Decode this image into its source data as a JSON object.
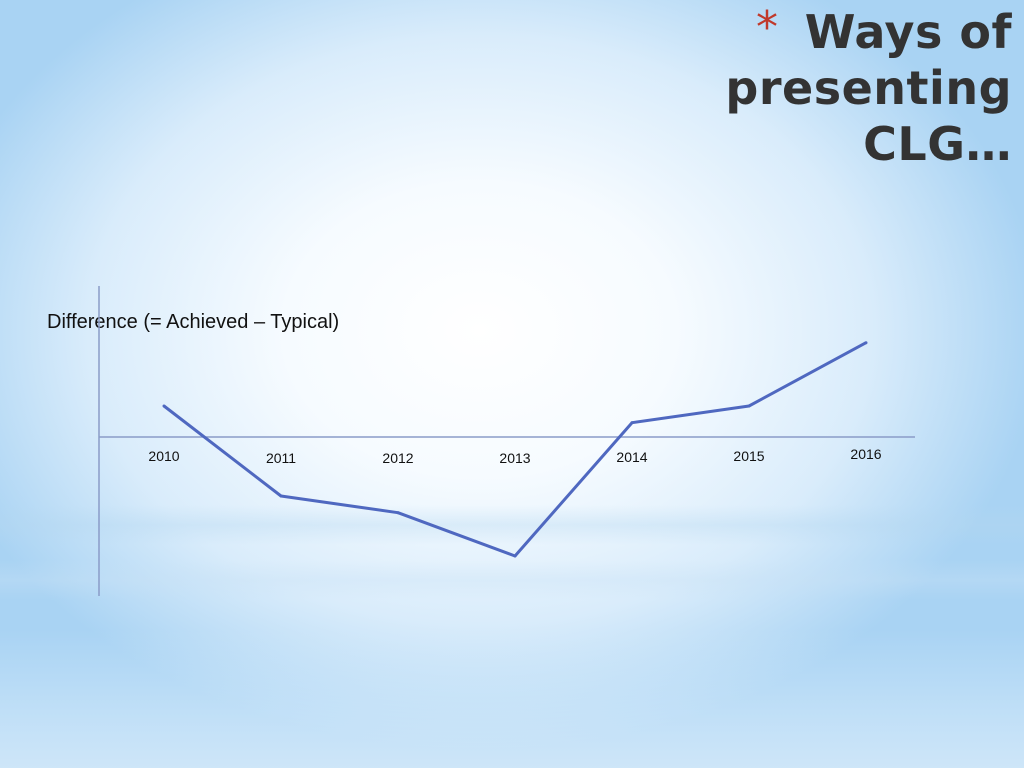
{
  "slide": {
    "title_star": "*",
    "title": "Ways of presenting CLG…"
  },
  "chart_data": {
    "type": "line",
    "title": "",
    "xlabel": "",
    "ylabel": "Difference (= Achieved – Typical)",
    "categories": [
      "2010",
      "2011",
      "2012",
      "2013",
      "2014",
      "2015",
      "2016"
    ],
    "values": [
      0.9,
      -1.8,
      -2.3,
      -3.6,
      0.4,
      0.9,
      2.8
    ],
    "ylim": [
      -4.8,
      4.5
    ],
    "grid": false,
    "legend": "none",
    "line_color": "#4f68c0"
  }
}
